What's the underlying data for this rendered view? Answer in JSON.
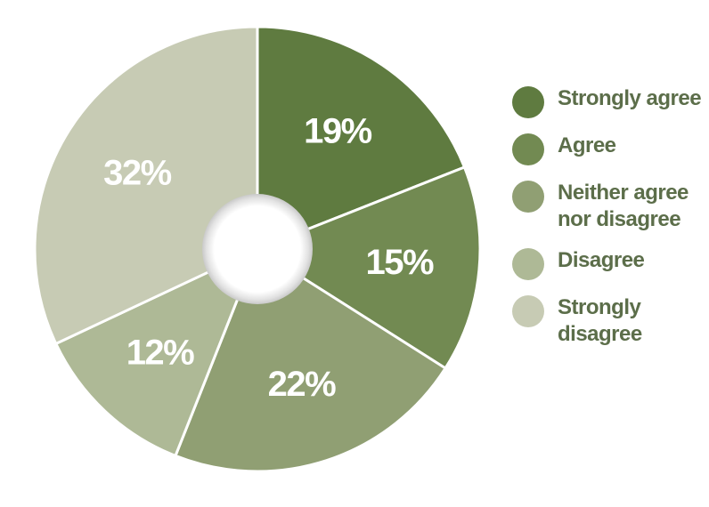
{
  "chart_data": {
    "type": "pie",
    "style": "donut",
    "categories": [
      "Strongly agree",
      "Agree",
      "Neither agree nor disagree",
      "Disagree",
      "Strongly disagree"
    ],
    "values": [
      19,
      15,
      22,
      12,
      32
    ],
    "value_labels": [
      "19%",
      "15%",
      "22%",
      "12%",
      "32%"
    ],
    "colors": [
      "#5f7b40",
      "#728a52",
      "#909f73",
      "#aeb996",
      "#c7cbb4"
    ],
    "legend": {
      "placement": "right",
      "entries": [
        {
          "label": "Strongly agree",
          "color": "#5f7b40"
        },
        {
          "label": "Agree",
          "color": "#728a52"
        },
        {
          "label": "Neither agree nor disagree",
          "color": "#909f73"
        },
        {
          "label": "Disagree",
          "color": "#aeb996"
        },
        {
          "label": "Strongly disagree",
          "color": "#c7cbb4"
        }
      ]
    }
  }
}
